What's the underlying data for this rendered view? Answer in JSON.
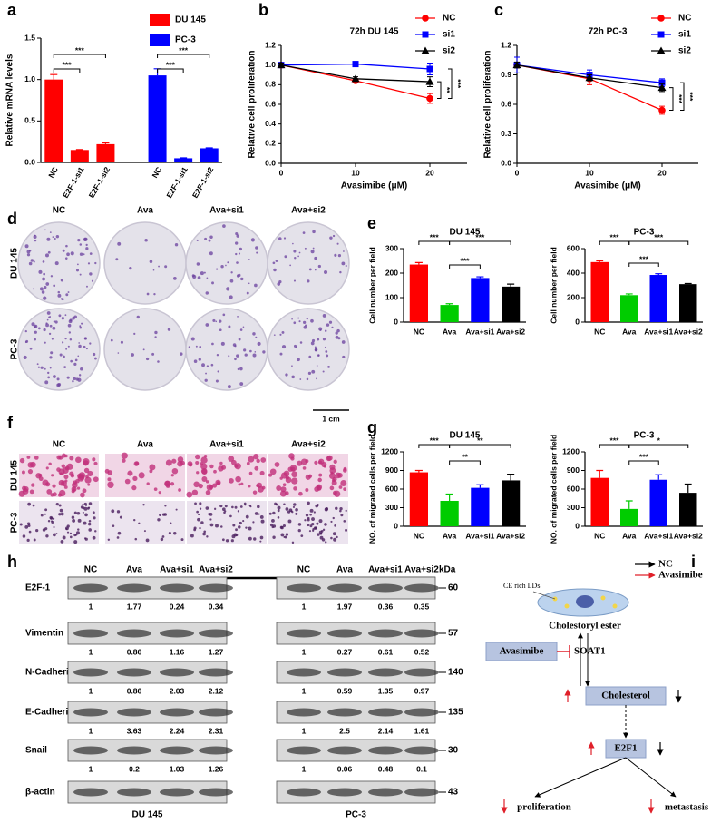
{
  "panel_labels": [
    "a",
    "b",
    "c",
    "d",
    "e",
    "f",
    "g",
    "h",
    "i"
  ],
  "chart_data": [
    {
      "type": "bar",
      "ylabel": "Relative mRNA levels",
      "categories": [
        "NC",
        "E2F-1-si1",
        "E2F-1-si2",
        "NC",
        "E2F-1-si1",
        "E2F-1-si2"
      ],
      "series": [
        {
          "name": "DU 145",
          "color": "#ff0000",
          "values": [
            1.0,
            0.15,
            0.22,
            null,
            null,
            null
          ],
          "errors": [
            0.06,
            0.005,
            0.015,
            null,
            null,
            null
          ]
        },
        {
          "name": "PC-3",
          "color": "#0000ff",
          "values": [
            null,
            null,
            null,
            1.05,
            0.05,
            0.17
          ],
          "errors": [
            null,
            null,
            null,
            0.08,
            0.005,
            0.005
          ]
        }
      ],
      "ylim": [
        0,
        1.5
      ],
      "yticks": [
        {
          "value": 0,
          "label": "0.0"
        },
        {
          "value": 0.5,
          "label": "0.5"
        },
        {
          "value": 1,
          "label": "1.0"
        },
        {
          "value": 1.5,
          "label": "1.5"
        }
      ],
      "annotations": [
        "***",
        "***",
        "***",
        "***"
      ]
    },
    {
      "type": "line",
      "title": "72h DU 145",
      "xlabel": "Avasimibe (μM)",
      "ylabel": "Relative cell proliferation",
      "x": [
        0,
        10,
        20
      ],
      "xlim": [
        0,
        25
      ],
      "xticks": [
        0,
        10,
        20
      ],
      "ylim": [
        0,
        1.2
      ],
      "yticks": [
        {
          "value": 0,
          "label": "0.0"
        },
        0.2,
        0.4,
        0.6,
        0.8,
        {
          "value": 1,
          "label": "1.0"
        },
        1.2
      ],
      "series": [
        {
          "name": "NC",
          "color": "#ff0000",
          "marker": "circle",
          "values": [
            1.0,
            0.84,
            0.66
          ],
          "errors": [
            0.02,
            0.02,
            0.05
          ]
        },
        {
          "name": "si1",
          "color": "#0000ff",
          "marker": "square",
          "values": [
            1.0,
            1.01,
            0.96
          ],
          "errors": [
            0.02,
            0.01,
            0.06
          ]
        },
        {
          "name": "si2",
          "color": "#000000",
          "marker": "triangle",
          "values": [
            1.0,
            0.86,
            0.83
          ],
          "errors": [
            0.02,
            0.02,
            0.05
          ]
        }
      ],
      "annotations": [
        "**",
        "***"
      ]
    },
    {
      "type": "line",
      "title": "72h PC-3",
      "xlabel": "Avasimibe (μM)",
      "ylabel": "Relative cell proliferation",
      "x": [
        0,
        10,
        20
      ],
      "xlim": [
        0,
        25
      ],
      "xticks": [
        0,
        10,
        20
      ],
      "ylim": [
        0,
        1.2
      ],
      "yticks": [
        {
          "value": 0,
          "label": "0.0"
        },
        0.3,
        0.6,
        0.9,
        1.2
      ],
      "series": [
        {
          "name": "NC",
          "color": "#ff0000",
          "marker": "circle",
          "values": [
            1.0,
            0.86,
            0.54
          ],
          "errors": [
            0.02,
            0.06,
            0.04
          ]
        },
        {
          "name": "si1",
          "color": "#0000ff",
          "marker": "square",
          "values": [
            1.0,
            0.9,
            0.82
          ],
          "errors": [
            0.08,
            0.05,
            0.04
          ]
        },
        {
          "name": "si2",
          "color": "#000000",
          "marker": "triangle",
          "values": [
            1.0,
            0.87,
            0.77
          ],
          "errors": [
            0.03,
            0.03,
            0.04
          ]
        }
      ],
      "annotations": [
        "***",
        "***"
      ]
    },
    {
      "type": "bar",
      "title": "DU 145",
      "ylabel": "Cell number per field",
      "categories": [
        "NC",
        "Ava",
        "Ava+si1",
        "Ava+si2"
      ],
      "values": [
        235,
        70,
        180,
        145
      ],
      "errors": [
        8,
        5,
        5,
        10
      ],
      "colors": [
        "#ff0000",
        "#00cc00",
        "#0000ff",
        "#000000"
      ],
      "ylim": [
        0,
        300
      ],
      "yticks": [
        0,
        100,
        200,
        300
      ],
      "annotations": [
        "***",
        "***",
        "***"
      ]
    },
    {
      "type": "bar",
      "title": "PC-3",
      "ylabel": "Cell number per field",
      "categories": [
        "NC",
        "Ava",
        "Ava+si1",
        "Ava+si2"
      ],
      "values": [
        490,
        220,
        385,
        310
      ],
      "errors": [
        10,
        10,
        10,
        5
      ],
      "colors": [
        "#ff0000",
        "#00cc00",
        "#0000ff",
        "#000000"
      ],
      "ylim": [
        0,
        600
      ],
      "yticks": [
        0,
        200,
        400,
        600
      ],
      "annotations": [
        "***",
        "***",
        "***"
      ]
    },
    {
      "type": "bar",
      "title": "DU 145",
      "ylabel": "NO. of migrated cells per field",
      "categories": [
        "NC",
        "Ava",
        "Ava+si1",
        "Ava+si2"
      ],
      "values": [
        870,
        410,
        620,
        740
      ],
      "errors": [
        30,
        110,
        50,
        100
      ],
      "colors": [
        "#ff0000",
        "#00cc00",
        "#0000ff",
        "#000000"
      ],
      "ylim": [
        0,
        1200
      ],
      "yticks": [
        0,
        300,
        600,
        900,
        1200
      ],
      "annotations": [
        "***",
        "**",
        "**"
      ]
    },
    {
      "type": "bar",
      "title": "PC-3",
      "ylabel": "NO. of migrated cells per field",
      "categories": [
        "NC",
        "Ava",
        "Ava+si1",
        "Ava+si2"
      ],
      "values": [
        780,
        280,
        750,
        540
      ],
      "errors": [
        120,
        130,
        80,
        140
      ],
      "colors": [
        "#ff0000",
        "#00cc00",
        "#0000ff",
        "#000000"
      ],
      "ylim": [
        0,
        1200
      ],
      "yticks": [
        0,
        300,
        600,
        900,
        1200
      ],
      "annotations": [
        "***",
        "*",
        "***"
      ]
    }
  ],
  "colony_images": {
    "columns": [
      "NC",
      "Ava",
      "Ava+si1",
      "Ava+si2"
    ],
    "rows": [
      "DU 145",
      "PC-3"
    ],
    "scale_bar": "1 cm"
  },
  "migration_images": {
    "columns": [
      "NC",
      "Ava",
      "Ava+si1",
      "Ava+si2"
    ],
    "rows": [
      "DU 145",
      "PC-3"
    ]
  },
  "western_blot": {
    "columns": [
      "NC",
      "Ava",
      "Ava+si1",
      "Ava+si2"
    ],
    "cell_lines": [
      "DU 145",
      "PC-3"
    ],
    "unit": "kDa",
    "rows": [
      {
        "protein": "E2F-1",
        "kda": 60,
        "values": [
          [
            1,
            1.77,
            0.24,
            0.34
          ],
          [
            1,
            1.97,
            0.36,
            0.35
          ]
        ]
      },
      {
        "protein": "Vimentin",
        "kda": 57,
        "values": [
          [
            1,
            0.86,
            1.16,
            1.27
          ],
          [
            1,
            0.27,
            0.61,
            0.52
          ]
        ]
      },
      {
        "protein": "N-Cadherin",
        "kda": 140,
        "values": [
          [
            1,
            0.86,
            2.03,
            2.12
          ],
          [
            1,
            0.59,
            1.35,
            0.97
          ]
        ]
      },
      {
        "protein": "E-Cadherin",
        "kda": 135,
        "values": [
          [
            1,
            3.63,
            2.24,
            2.31
          ],
          [
            1,
            2.5,
            2.14,
            1.61
          ]
        ]
      },
      {
        "protein": "Snail",
        "kda": 30,
        "values": [
          [
            1,
            0.2,
            1.03,
            1.26
          ],
          [
            1,
            0.06,
            0.48,
            0.1
          ]
        ]
      },
      {
        "protein": "β-actin",
        "kda": 43
      }
    ]
  },
  "pathway_diagram": {
    "legend": [
      "NC",
      "Avasimibe"
    ],
    "nodes": {
      "droplets": "CE rich LDs",
      "ester": "Cholestoryl ester",
      "drug": "Avasimibe",
      "enzyme": "SOAT1",
      "cholesterol": "Cholesterol",
      "factor": "E2F1",
      "proliferation": "proliferation",
      "metastasis": "metastasis"
    }
  }
}
